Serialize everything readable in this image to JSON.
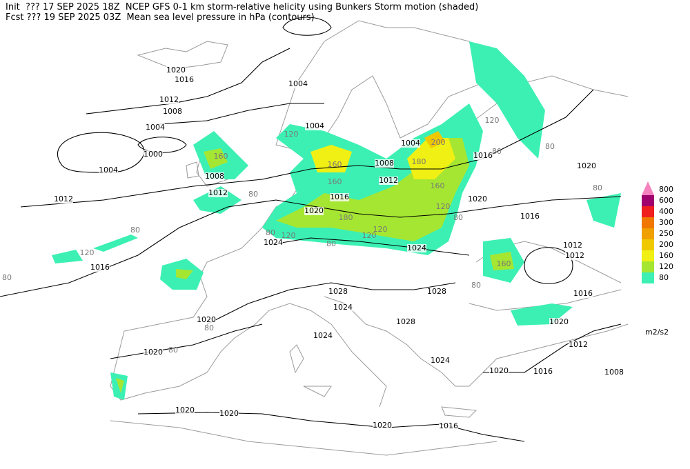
{
  "header": {
    "line1": "Init  ??? 17 SEP 2025 18Z  NCEP GFS 0-1 km storm-relative helicity using Bunkers Storm motion (shaded)",
    "line2": "Fcst ??? 19 SEP 2025 03Z  Mean sea level pressure in hPa (contours)"
  },
  "colorbar": {
    "levels": [
      80,
      120,
      160,
      200,
      250,
      300,
      400,
      600,
      800
    ],
    "colors": [
      "#3cf0b4",
      "#a5e632",
      "#f0f014",
      "#f0c800",
      "#f0a000",
      "#f07800",
      "#f01e1e",
      "#a0006e",
      "#f582be"
    ],
    "unit": "m2/s2"
  },
  "isobar_labels": [
    1020,
    1016,
    1012,
    1008,
    1004,
    1000,
    1004,
    1008,
    1012,
    1012,
    1004,
    1004,
    1004,
    1008,
    1012,
    1016,
    1020,
    1016,
    1020,
    1020,
    1016,
    1024,
    1024,
    1012,
    1012,
    1016,
    1028,
    1028,
    1024,
    1020,
    1028,
    1024,
    1020,
    1024,
    1020,
    1016,
    1012,
    1016,
    1020,
    1008,
    1020,
    1020,
    1020,
    1016
  ],
  "helicity_labels": [
    80,
    160,
    160,
    180,
    160,
    200,
    120,
    80,
    80,
    80,
    120,
    80,
    120,
    120,
    180,
    120,
    80,
    80,
    80,
    120,
    80,
    80,
    80,
    160,
    80,
    160,
    120
  ]
}
